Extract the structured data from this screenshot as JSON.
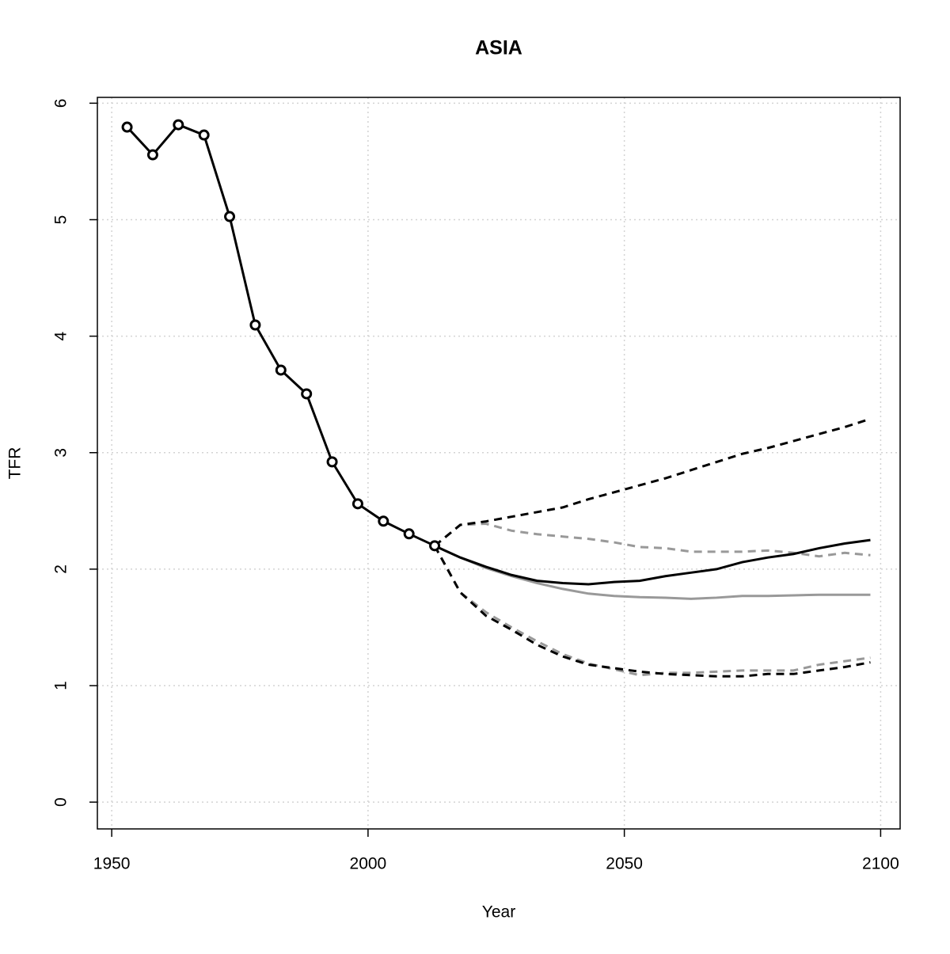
{
  "chart_data": {
    "type": "line",
    "title": "ASIA",
    "x_label": "Year",
    "y_label": "TFR",
    "xlim": [
      1947.2,
      2103.8
    ],
    "ylim": [
      -0.23,
      6.05
    ],
    "xticks": [
      1950,
      2000,
      2050,
      2100
    ],
    "yticks": [
      0,
      1,
      2,
      3,
      4,
      5,
      6
    ],
    "grid": true,
    "series": [
      {
        "color": "#999999",
        "style": "solid",
        "x": [
          2013,
          2018,
          2023,
          2028,
          2033,
          2038,
          2043,
          2048,
          2053,
          2058,
          2063,
          2068,
          2073,
          2078,
          2083,
          2088,
          2093,
          2098
        ],
        "values": [
          2.2,
          2.1,
          2.01,
          1.94,
          1.88,
          1.83,
          1.79,
          1.77,
          1.76,
          1.755,
          1.745,
          1.755,
          1.77,
          1.77,
          1.775,
          1.78,
          1.78,
          1.78
        ]
      },
      {
        "color": "#999999",
        "style": "dashed",
        "x": [
          2013,
          2018,
          2023,
          2028,
          2033,
          2038,
          2043,
          2048,
          2053,
          2058,
          2063,
          2068,
          2073,
          2078,
          2083,
          2088,
          2093,
          2098
        ],
        "values": [
          2.2,
          2.38,
          2.39,
          2.33,
          2.3,
          2.28,
          2.26,
          2.23,
          2.19,
          2.18,
          2.15,
          2.15,
          2.15,
          2.16,
          2.14,
          2.11,
          2.14,
          2.12
        ]
      },
      {
        "color": "#999999",
        "style": "dashed",
        "x": [
          2013,
          2018,
          2023,
          2028,
          2033,
          2038,
          2043,
          2048,
          2053,
          2058,
          2063,
          2068,
          2073,
          2078,
          2083,
          2088,
          2093,
          2098
        ],
        "values": [
          2.2,
          1.8,
          1.63,
          1.5,
          1.38,
          1.27,
          1.19,
          1.14,
          1.09,
          1.11,
          1.11,
          1.12,
          1.13,
          1.13,
          1.13,
          1.18,
          1.21,
          1.24
        ]
      },
      {
        "color": "#000000",
        "style": "solid",
        "x": [
          2013,
          2018,
          2023,
          2028,
          2033,
          2038,
          2043,
          2048,
          2053,
          2058,
          2063,
          2068,
          2073,
          2078,
          2083,
          2088,
          2093,
          2098
        ],
        "values": [
          2.2,
          2.1,
          2.02,
          1.95,
          1.9,
          1.88,
          1.87,
          1.89,
          1.9,
          1.94,
          1.97,
          2.0,
          2.06,
          2.1,
          2.13,
          2.18,
          2.22,
          2.25
        ]
      },
      {
        "color": "#000000",
        "style": "dashed",
        "x": [
          2013,
          2018,
          2023,
          2028,
          2033,
          2038,
          2043,
          2048,
          2053,
          2058,
          2063,
          2068,
          2073,
          2078,
          2083,
          2088,
          2093,
          2098
        ],
        "values": [
          2.2,
          2.38,
          2.41,
          2.45,
          2.49,
          2.53,
          2.6,
          2.66,
          2.72,
          2.78,
          2.85,
          2.92,
          2.99,
          3.04,
          3.1,
          3.16,
          3.22,
          3.29
        ]
      },
      {
        "color": "#000000",
        "style": "dashed",
        "x": [
          2013,
          2018,
          2023,
          2028,
          2033,
          2038,
          2043,
          2048,
          2053,
          2058,
          2063,
          2068,
          2073,
          2078,
          2083,
          2088,
          2093,
          2098
        ],
        "values": [
          2.2,
          1.8,
          1.6,
          1.48,
          1.35,
          1.25,
          1.18,
          1.15,
          1.12,
          1.1,
          1.09,
          1.08,
          1.08,
          1.1,
          1.1,
          1.13,
          1.16,
          1.2
        ]
      },
      {
        "color": "#000000",
        "style": "solid",
        "marker": "circle",
        "x": [
          1953,
          1958,
          1963,
          1968,
          1973,
          1978,
          1983,
          1988,
          1993,
          1998,
          2003,
          2008,
          2013
        ],
        "values": [
          5.795,
          5.557,
          5.815,
          5.727,
          5.027,
          4.096,
          3.709,
          3.505,
          2.921,
          2.561,
          2.412,
          2.303,
          2.201
        ]
      }
    ]
  }
}
